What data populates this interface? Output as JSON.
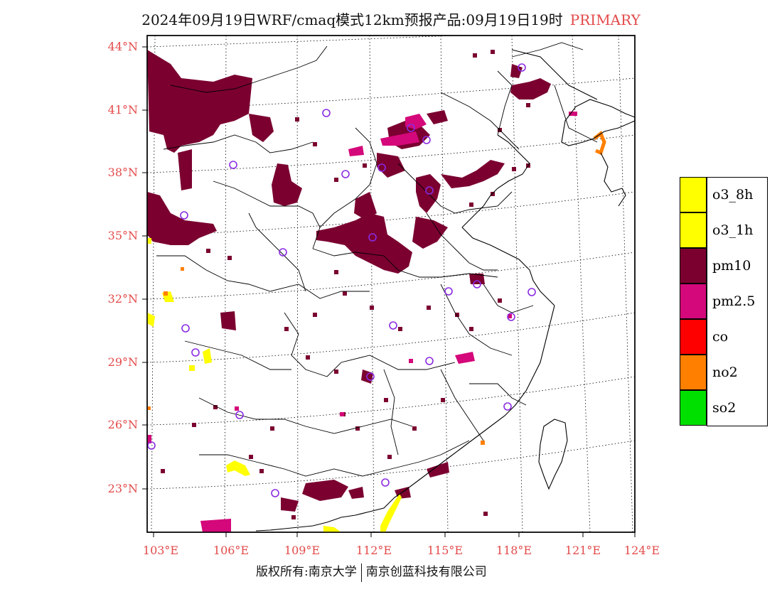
{
  "title": {
    "main": "2024年09月19日WRF/cmaq模式12km预报产品:09月19日19时",
    "tag": "PRIMARY"
  },
  "axes": {
    "lat_labels": [
      "44°N",
      "41°N",
      "38°N",
      "35°N",
      "32°N",
      "29°N",
      "26°N",
      "23°N"
    ],
    "lon_labels": [
      "103°E",
      "106°E",
      "109°E",
      "112°E",
      "115°E",
      "118°E",
      "121°E",
      "124°E"
    ]
  },
  "legend": [
    {
      "label": "o3_8h",
      "color": "#ffff00"
    },
    {
      "label": "o3_1h",
      "color": "#ffff00"
    },
    {
      "label": "pm10",
      "color": "#7b0030"
    },
    {
      "label": "pm2.5",
      "color": "#d4087a"
    },
    {
      "label": "co",
      "color": "#ff0000"
    },
    {
      "label": "no2",
      "color": "#ff7f00"
    },
    {
      "label": "so2",
      "color": "#00e000"
    }
  ],
  "colors": {
    "label_red": "#e34a4a",
    "pm10": "#7b0030",
    "pm25": "#d4087a",
    "o3": "#ffff00",
    "no2": "#ff7f00",
    "station": "#8a2be2"
  },
  "credit": {
    "left": "版权所有:南京大学",
    "right": "南京创蓝科技有限公司"
  }
}
